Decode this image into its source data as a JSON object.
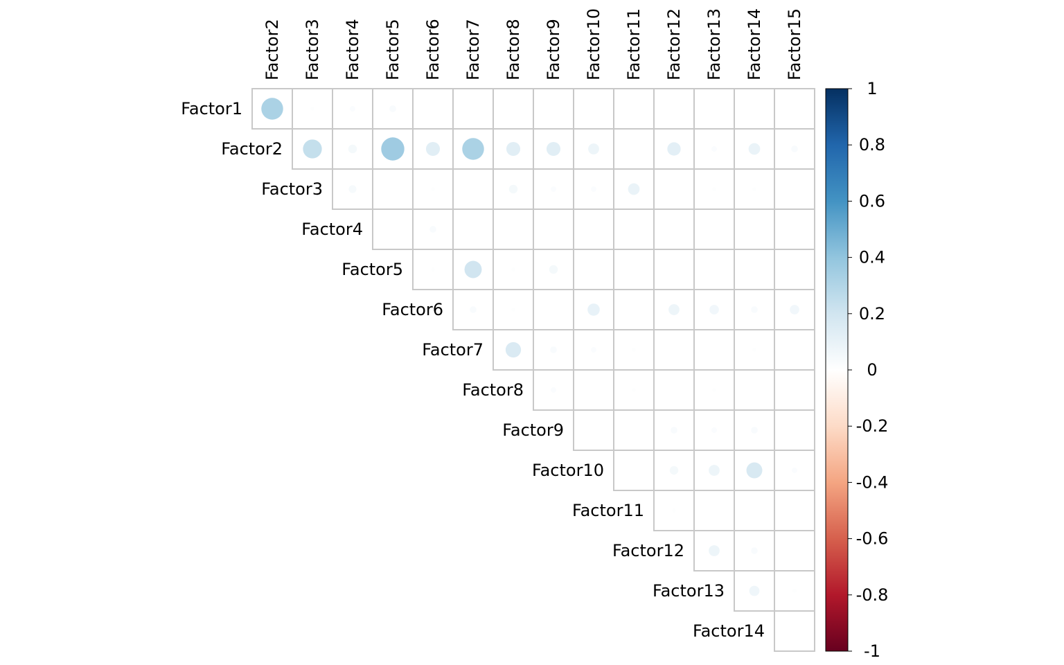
{
  "chart_data": {
    "type": "heatmap",
    "subtype": "corrplot-upper-circle",
    "row_labels": [
      "Factor1",
      "Factor2",
      "Factor3",
      "Factor4",
      "Factor5",
      "Factor6",
      "Factor7",
      "Factor8",
      "Factor9",
      "Factor10",
      "Factor11",
      "Factor12",
      "Factor13",
      "Factor14"
    ],
    "col_labels": [
      "Factor2",
      "Factor3",
      "Factor4",
      "Factor5",
      "Factor6",
      "Factor7",
      "Factor8",
      "Factor9",
      "Factor10",
      "Factor11",
      "Factor12",
      "Factor13",
      "Factor14",
      "Factor15"
    ],
    "values": [
      [
        0.32,
        0.01,
        0.02,
        0.03,
        0.0,
        0.0,
        0.0,
        0.0,
        0.0,
        0.0,
        0.0,
        0.0,
        0.0,
        0.0
      ],
      [
        null,
        0.24,
        0.05,
        0.36,
        0.13,
        0.32,
        0.13,
        0.13,
        0.08,
        0.0,
        0.12,
        0.02,
        0.09,
        0.03
      ],
      [
        null,
        null,
        0.04,
        0.0,
        0.01,
        0.0,
        0.05,
        0.02,
        0.02,
        0.09,
        0.0,
        0.01,
        0.01,
        0.0
      ],
      [
        null,
        null,
        null,
        0.0,
        0.03,
        0.0,
        0.0,
        0.0,
        0.0,
        0.0,
        0.0,
        0.0,
        0.0,
        0.0
      ],
      [
        null,
        null,
        null,
        null,
        0.01,
        0.2,
        0.01,
        0.05,
        0.0,
        0.0,
        0.0,
        0.0,
        0.0,
        0.0
      ],
      [
        null,
        null,
        null,
        null,
        null,
        0.03,
        0.01,
        0.0,
        0.1,
        0.0,
        0.08,
        0.06,
        0.03,
        0.06
      ],
      [
        null,
        null,
        null,
        null,
        null,
        null,
        0.16,
        0.03,
        0.02,
        0.01,
        0.0,
        0.0,
        0.01,
        0.0
      ],
      [
        null,
        null,
        null,
        null,
        null,
        null,
        null,
        0.02,
        0.0,
        0.01,
        0.0,
        0.01,
        0.0,
        0.0
      ],
      [
        null,
        null,
        null,
        null,
        null,
        null,
        null,
        null,
        0.0,
        0.0,
        0.03,
        0.02,
        0.03,
        0.0
      ],
      [
        null,
        null,
        null,
        null,
        null,
        null,
        null,
        null,
        null,
        0.0,
        0.05,
        0.08,
        0.17,
        0.02
      ],
      [
        null,
        null,
        null,
        null,
        null,
        null,
        null,
        null,
        null,
        null,
        0.01,
        0.0,
        0.0,
        0.0
      ],
      [
        null,
        null,
        null,
        null,
        null,
        null,
        null,
        null,
        null,
        null,
        null,
        0.08,
        0.03,
        0.0
      ],
      [
        null,
        null,
        null,
        null,
        null,
        null,
        null,
        null,
        null,
        null,
        null,
        null,
        0.07,
        0.01
      ],
      [
        null,
        null,
        null,
        null,
        null,
        null,
        null,
        null,
        null,
        null,
        null,
        null,
        null,
        0.0
      ]
    ],
    "colorbar": {
      "range": [
        -1,
        1
      ],
      "ticks": [
        "1",
        "0.8",
        "0.6",
        "0.4",
        "0.2",
        "0",
        "-0.2",
        "-0.4",
        "-0.6",
        "-0.8",
        "-1"
      ],
      "colors": [
        "#67001F",
        "#B2182B",
        "#D6604D",
        "#F4A582",
        "#FDDBC7",
        "#FFFFFF",
        "#D1E5F0",
        "#92C5DE",
        "#4393C3",
        "#2166AC",
        "#053061"
      ]
    },
    "grid": true
  }
}
